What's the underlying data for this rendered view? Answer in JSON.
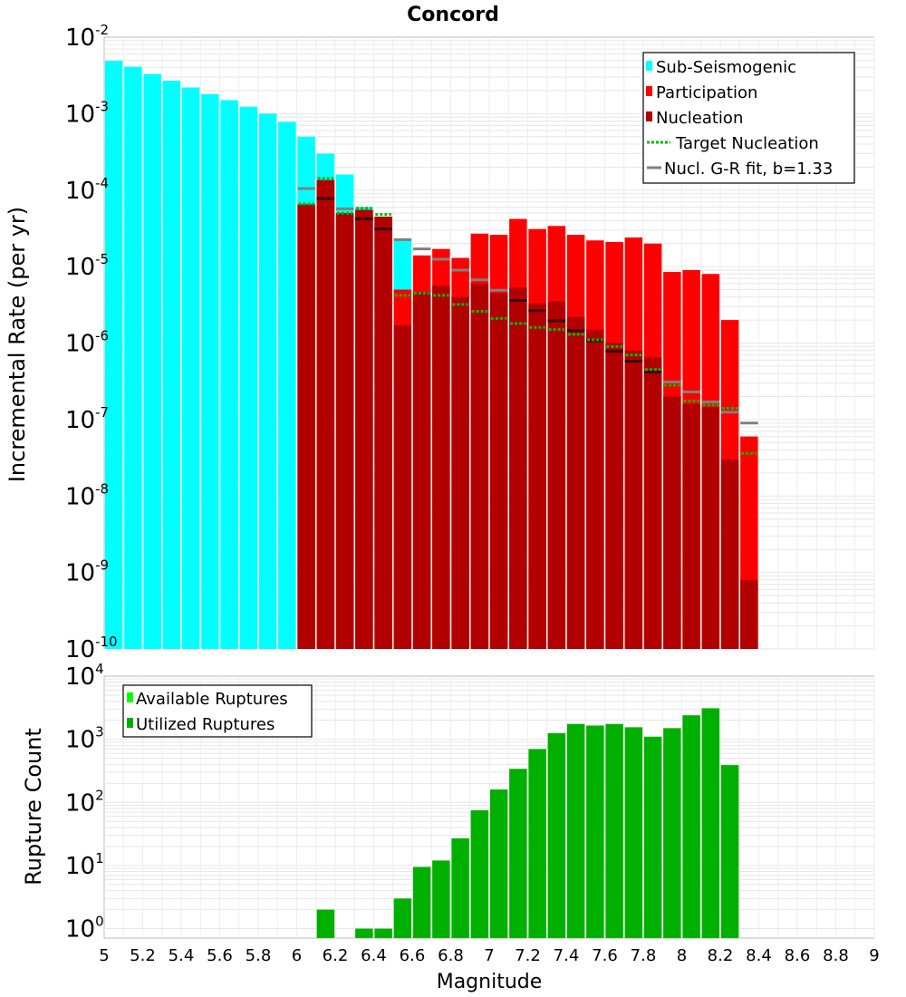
{
  "chart_data": [
    {
      "type": "bar",
      "title": "Concord",
      "ylabel": "Incremental Rate (per yr)",
      "xlabel": "",
      "xlim": [
        5,
        9
      ],
      "ylim_exp": [
        -10,
        -2
      ],
      "yscale": "log",
      "ytick_exponents": [
        "-2",
        "-3",
        "-4",
        "-5",
        "-6",
        "-7",
        "-8",
        "-9",
        "-10"
      ],
      "ytick_base": "10",
      "legend_position": "top-right",
      "colors": {
        "sub_seismogenic": "#00ffff",
        "participation": "#ff0000",
        "nucleation": "#b20000",
        "target_nucleation": "#00bb00",
        "gr_fit": "#808080"
      },
      "legend": [
        {
          "label": "Sub-Seismogenic",
          "kind": "box",
          "color": "#00ffff"
        },
        {
          "label": "Participation",
          "kind": "box",
          "color": "#ff0000"
        },
        {
          "label": "Nucleation",
          "kind": "box",
          "color": "#b20000"
        },
        {
          "label": "Target Nucleation",
          "kind": "dots",
          "color": "#00bb00"
        },
        {
          "label": "Nucl. G-R fit, b=1.33",
          "kind": "line",
          "color": "#808080"
        }
      ],
      "sub_seismogenic": {
        "magnitudes": [
          5.05,
          5.15,
          5.25,
          5.35,
          5.45,
          5.55,
          5.65,
          5.75,
          5.85,
          5.95,
          6.05,
          6.15,
          6.25,
          6.35,
          6.45,
          6.55
        ],
        "values": [
          0.0049,
          0.0041,
          0.0033,
          0.0027,
          0.0022,
          0.0018,
          0.0015,
          0.00123,
          0.001,
          0.00078,
          0.0005,
          0.0003,
          0.00016,
          6e-05,
          4.5e-05,
          2.2e-05
        ]
      },
      "participation": {
        "magnitudes": [
          6.05,
          6.15,
          6.25,
          6.35,
          6.45,
          6.55,
          6.65,
          6.75,
          6.85,
          6.95,
          7.05,
          7.15,
          7.25,
          7.35,
          7.45,
          7.55,
          7.65,
          7.75,
          7.85,
          7.95,
          8.05,
          8.15,
          8.25,
          8.35
        ],
        "values": [
          6.5e-05,
          0.000135,
          5e-05,
          5.5e-05,
          4.5e-05,
          5e-06,
          1.4e-05,
          1.7e-05,
          1.3e-05,
          2.7e-05,
          2.6e-05,
          4.2e-05,
          3.1e-05,
          3.4e-05,
          2.6e-05,
          2.2e-05,
          2.1e-05,
          2.4e-05,
          2e-05,
          8.5e-06,
          9e-06,
          8e-06,
          2e-06,
          6e-08
        ]
      },
      "nucleation": {
        "magnitudes": [
          6.05,
          6.15,
          6.25,
          6.35,
          6.45,
          6.55,
          6.65,
          6.75,
          6.85,
          6.95,
          7.05,
          7.15,
          7.25,
          7.35,
          7.45,
          7.55,
          7.65,
          7.75,
          7.85,
          7.95,
          8.05,
          8.15,
          8.25,
          8.35
        ],
        "values": [
          6.5e-05,
          0.000135,
          5e-05,
          5.5e-05,
          4.5e-05,
          1.7e-06,
          4.7e-06,
          5.6e-06,
          4e-06,
          6e-06,
          4.5e-06,
          5.3e-06,
          3.3e-06,
          3.5e-06,
          2.2e-06,
          1.5e-06,
          1e-06,
          8e-07,
          6.5e-07,
          2e-07,
          1.6e-07,
          1.45e-07,
          3e-08,
          8e-10
        ]
      },
      "target_nucleation": {
        "magnitudes": [
          6.05,
          6.15,
          6.25,
          6.35,
          6.45,
          6.55,
          6.65,
          6.75,
          6.85,
          6.95,
          7.05,
          7.15,
          7.25,
          7.35,
          7.45,
          7.55,
          7.65,
          7.75,
          7.85,
          7.95,
          8.05,
          8.15,
          8.25,
          8.35
        ],
        "values": [
          6.6e-05,
          0.000142,
          5e-05,
          5.8e-05,
          4.8e-05,
          4.2e-06,
          4.5e-06,
          4.2e-06,
          3.2e-06,
          2.6e-06,
          2.1e-06,
          1.8e-06,
          1.6e-06,
          1.5e-06,
          1.3e-06,
          1.1e-06,
          9e-07,
          7e-07,
          4.5e-07,
          2.8e-07,
          1.75e-07,
          1.55e-07,
          1.4e-07,
          3.6e-08
        ]
      },
      "gr_fit": {
        "magnitudes": [
          6.05,
          6.15,
          6.25,
          6.35,
          6.45,
          6.55,
          6.65,
          6.75,
          6.85,
          6.95,
          7.05,
          7.15,
          7.25,
          7.35,
          7.45,
          7.55,
          7.65,
          7.75,
          7.85,
          7.95,
          8.05,
          8.15,
          8.25,
          8.35
        ],
        "values": [
          0.000105,
          7.8e-05,
          5.7e-05,
          4.2e-05,
          3.1e-05,
          2.25e-05,
          1.7e-05,
          1.25e-05,
          9e-06,
          6.7e-06,
          4.9e-06,
          3.6e-06,
          2.65e-06,
          1.95e-06,
          1.45e-06,
          1.07e-06,
          7.8e-07,
          5.8e-07,
          4.2e-07,
          3.1e-07,
          2.3e-07,
          1.7e-07,
          1.25e-07,
          9e-08
        ]
      }
    },
    {
      "type": "bar",
      "title": "",
      "ylabel": "Rupture Count",
      "xlabel": "Magnitude",
      "xlim": [
        5,
        9
      ],
      "ylim_exp": [
        -0.15,
        4
      ],
      "yscale": "log",
      "ytick_exponents": [
        "0",
        "1",
        "2",
        "3",
        "4"
      ],
      "ytick_base": "10",
      "xticks": [
        "5",
        "5.2",
        "5.4",
        "5.6",
        "5.8",
        "6",
        "6.2",
        "6.4",
        "6.6",
        "6.8",
        "7",
        "7.2",
        "7.4",
        "7.6",
        "7.8",
        "8",
        "8.2",
        "8.4",
        "8.6",
        "8.8",
        "9"
      ],
      "legend_position": "top-left",
      "colors": {
        "available": "#00ff00",
        "utilized": "#00b000"
      },
      "legend": [
        {
          "label": "Available Ruptures",
          "kind": "box",
          "color": "#00ff00"
        },
        {
          "label": "Utilized Ruptures",
          "kind": "box",
          "color": "#00b000"
        }
      ],
      "utilized": {
        "magnitudes": [
          6.15,
          6.35,
          6.45,
          6.55,
          6.65,
          6.75,
          6.85,
          6.95,
          7.05,
          7.15,
          7.25,
          7.35,
          7.45,
          7.55,
          7.65,
          7.75,
          7.85,
          7.95,
          8.05,
          8.15,
          8.25
        ],
        "values": [
          2,
          1,
          1,
          3,
          9.5,
          12,
          27,
          75,
          160,
          340,
          700,
          1250,
          1750,
          1650,
          1750,
          1550,
          1100,
          1500,
          2400,
          3100,
          390
        ]
      }
    }
  ]
}
